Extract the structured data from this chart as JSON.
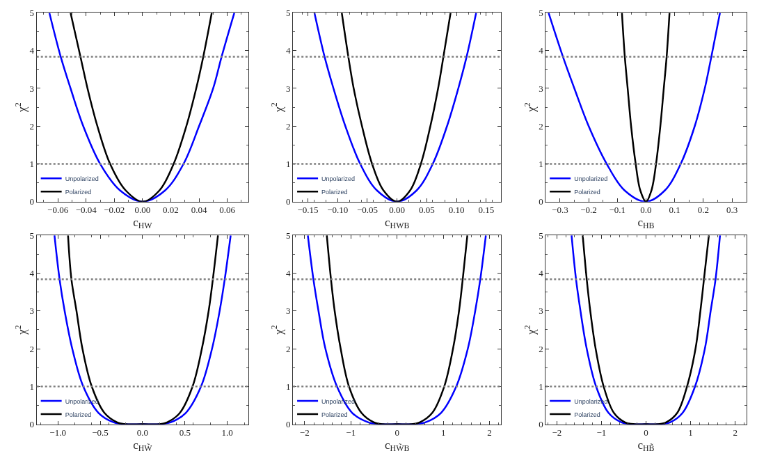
{
  "chart_data": [
    {
      "type": "line",
      "xlabel": "c$_{HW}$",
      "ylabel": "χ$^{2}$",
      "xlim": [
        -0.075,
        0.075
      ],
      "ylim": [
        0,
        5
      ],
      "legend": "bottom left",
      "xticks": [
        {
          "value": -0.06,
          "label": "−0.06"
        },
        {
          "value": -0.04,
          "label": "−0.04"
        },
        {
          "value": -0.02,
          "label": "−0.02"
        },
        {
          "value": 0,
          "label": "0.00"
        },
        {
          "value": 0.02,
          "label": "0.02"
        },
        {
          "value": 0.04,
          "label": "0.04"
        },
        {
          "value": 0.06,
          "label": "0.06"
        }
      ],
      "yticks": [
        0,
        1,
        2,
        3,
        4,
        5
      ],
      "ref_lines": [
        {
          "axis": "y",
          "value": 1,
          "color": "#808080",
          "line_style": "dotted"
        },
        {
          "axis": "y",
          "value": 3.84,
          "color": "#808080",
          "line_style": "dotted"
        }
      ],
      "series": [
        {
          "name": "Unpolarized",
          "color": "#0000ff",
          "x": [
            -0.066,
            -0.058,
            -0.051,
            -0.042,
            -0.03,
            -0.016,
            0,
            0.016,
            0.029,
            0.04,
            0.05,
            0.056,
            0.065
          ],
          "values": [
            5,
            3.84,
            3,
            2,
            1,
            0.3,
            0,
            0.3,
            1,
            2,
            3,
            3.84,
            5
          ]
        },
        {
          "name": "Polarized",
          "color": "#000000",
          "x": [
            -0.051,
            -0.044,
            -0.039,
            -0.032,
            -0.023,
            -0.012,
            0,
            0.012,
            0.022,
            0.031,
            0.038,
            0.043,
            0.049
          ],
          "values": [
            5,
            3.84,
            3,
            2,
            1,
            0.3,
            0,
            0.3,
            1,
            2,
            3,
            3.84,
            5
          ]
        }
      ]
    },
    {
      "type": "line",
      "xlabel": "c$_{HWB}$",
      "ylabel": "χ$^{2}$",
      "xlim": [
        -0.175,
        0.175
      ],
      "ylim": [
        0,
        5
      ],
      "legend": "bottom left",
      "xticks": [
        {
          "value": -0.15,
          "label": "−0.15"
        },
        {
          "value": -0.1,
          "label": "−0.10"
        },
        {
          "value": -0.05,
          "label": "−0.05"
        },
        {
          "value": 0,
          "label": "0.00"
        },
        {
          "value": 0.05,
          "label": "0.05"
        },
        {
          "value": 0.1,
          "label": "0.10"
        },
        {
          "value": 0.15,
          "label": "0.15"
        }
      ],
      "yticks": [
        0,
        1,
        2,
        3,
        4,
        5
      ],
      "ref_lines": [
        {
          "axis": "y",
          "value": 1,
          "color": "#808080",
          "line_style": "dotted"
        },
        {
          "axis": "y",
          "value": 3.84,
          "color": "#808080",
          "line_style": "dotted"
        }
      ],
      "series": [
        {
          "name": "Unpolarized",
          "color": "#0000ff",
          "x": [
            -0.139,
            -0.122,
            -0.107,
            -0.087,
            -0.062,
            -0.034,
            0,
            0.033,
            0.06,
            0.084,
            0.103,
            0.117,
            0.133
          ],
          "values": [
            5,
            3.84,
            3,
            2,
            1,
            0.3,
            0,
            0.3,
            1,
            2,
            3,
            3.84,
            5
          ]
        },
        {
          "name": "Polarized",
          "color": "#000000",
          "x": [
            -0.093,
            -0.082,
            -0.073,
            -0.059,
            -0.042,
            -0.023,
            0,
            0.022,
            0.04,
            0.056,
            0.069,
            0.078,
            0.09
          ],
          "values": [
            5,
            3.84,
            3,
            2,
            1,
            0.3,
            0,
            0.3,
            1,
            2,
            3,
            3.84,
            5
          ]
        }
      ]
    },
    {
      "type": "line",
      "xlabel": "c$_{HB}$",
      "ylabel": "χ$^{2}$",
      "xlim": [
        -0.35,
        0.35
      ],
      "ylim": [
        0,
        5
      ],
      "legend": "bottom left",
      "xticks": [
        {
          "value": -0.3,
          "label": "−0.3"
        },
        {
          "value": -0.2,
          "label": "−0.2"
        },
        {
          "value": -0.1,
          "label": "−0.1"
        },
        {
          "value": 0,
          "label": "0.0"
        },
        {
          "value": 0.1,
          "label": "0.1"
        },
        {
          "value": 0.2,
          "label": "0.2"
        },
        {
          "value": 0.3,
          "label": "0.3"
        }
      ],
      "yticks": [
        0,
        1,
        2,
        3,
        4,
        5
      ],
      "ref_lines": [
        {
          "axis": "y",
          "value": 1,
          "color": "#808080",
          "line_style": "dotted"
        },
        {
          "axis": "y",
          "value": 3.84,
          "color": "#808080",
          "line_style": "dotted"
        }
      ],
      "series": [
        {
          "name": "Unpolarized",
          "color": "#0000ff",
          "x": [
            -0.34,
            -0.29,
            -0.25,
            -0.2,
            -0.137,
            -0.075,
            0,
            0.066,
            0.121,
            0.17,
            0.205,
            0.228,
            0.258
          ],
          "values": [
            5,
            3.84,
            3,
            2,
            1,
            0.3,
            0,
            0.3,
            1,
            2,
            3,
            3.84,
            5
          ]
        },
        {
          "name": "Polarized",
          "color": "#000000",
          "x": [
            -0.084,
            -0.074,
            -0.064,
            -0.052,
            -0.036,
            -0.02,
            0,
            0.019,
            0.035,
            0.05,
            0.062,
            0.072,
            0.082
          ],
          "values": [
            5,
            3.84,
            3,
            2,
            1,
            0.3,
            0,
            0.3,
            1,
            2,
            3,
            3.84,
            5
          ]
        }
      ]
    },
    {
      "type": "line",
      "xlabel": "c$_{HW̃}$",
      "ylabel": "χ$^{2}$",
      "xlim": [
        -1.25,
        1.25
      ],
      "ylim": [
        0,
        5
      ],
      "legend": "bottom left",
      "xticks": [
        {
          "value": -1,
          "label": "−1.0"
        },
        {
          "value": -0.5,
          "label": "−0.5"
        },
        {
          "value": 0,
          "label": "0.0"
        },
        {
          "value": 0.5,
          "label": "0.5"
        },
        {
          "value": 1,
          "label": "1.0"
        }
      ],
      "yticks": [
        0,
        1,
        2,
        3,
        4,
        5
      ],
      "ref_lines": [
        {
          "axis": "y",
          "value": 1,
          "color": "#808080",
          "line_style": "dotted"
        },
        {
          "axis": "y",
          "value": 3.84,
          "color": "#808080",
          "line_style": "dotted"
        }
      ],
      "series": [
        {
          "name": "Unpolarized",
          "color": "#0000ff",
          "x": [
            -1.04,
            -0.98,
            -0.92,
            -0.83,
            -0.7,
            -0.52,
            -0.34,
            -0.2,
            0,
            0.2,
            0.33,
            0.51,
            0.69,
            0.82,
            0.91,
            0.97,
            1.04
          ],
          "values": [
            5,
            3.84,
            3,
            2,
            1,
            0.3,
            0.05,
            0,
            0,
            0,
            0.05,
            0.3,
            1,
            2,
            3,
            3.84,
            5
          ]
        },
        {
          "name": "Polarized",
          "color": "#000000",
          "x": [
            -0.88,
            -0.84,
            -0.78,
            -0.71,
            -0.6,
            -0.45,
            -0.3,
            -0.2,
            0,
            0.2,
            0.29,
            0.44,
            0.59,
            0.7,
            0.78,
            0.83,
            0.89
          ],
          "values": [
            5,
            3.84,
            3,
            2,
            1,
            0.3,
            0.05,
            0,
            0,
            0,
            0.05,
            0.3,
            1,
            2,
            3,
            3.84,
            5
          ]
        }
      ]
    },
    {
      "type": "line",
      "xlabel": "c$_{HW̃B}$",
      "ylabel": "χ$^{2}$",
      "xlim": [
        -2.25,
        2.25
      ],
      "ylim": [
        0,
        5
      ],
      "legend": "bottom left",
      "xticks": [
        {
          "value": -2,
          "label": "−2"
        },
        {
          "value": -1,
          "label": "−1"
        },
        0,
        1,
        2
      ],
      "yticks": [
        0,
        1,
        2,
        3,
        4,
        5
      ],
      "ref_lines": [
        {
          "axis": "y",
          "value": 1,
          "color": "#808080",
          "line_style": "dotted"
        },
        {
          "axis": "y",
          "value": 3.84,
          "color": "#808080",
          "line_style": "dotted"
        }
      ],
      "series": [
        {
          "name": "Unpolarized",
          "color": "#0000ff",
          "x": [
            -1.93,
            -1.81,
            -1.7,
            -1.55,
            -1.3,
            -0.97,
            -0.62,
            -0.35,
            0,
            0.35,
            0.61,
            0.95,
            1.28,
            1.53,
            1.69,
            1.8,
            1.92
          ],
          "values": [
            5,
            3.84,
            3,
            2,
            1,
            0.3,
            0.05,
            0,
            0,
            0,
            0.05,
            0.3,
            1,
            2,
            3,
            3.84,
            5
          ]
        },
        {
          "name": "Polarized",
          "color": "#000000",
          "x": [
            -1.52,
            -1.43,
            -1.35,
            -1.22,
            -1.04,
            -0.77,
            -0.5,
            -0.3,
            0,
            0.3,
            0.49,
            0.76,
            1.02,
            1.21,
            1.34,
            1.42,
            1.52
          ],
          "values": [
            5,
            3.84,
            3,
            2,
            1,
            0.3,
            0.05,
            0,
            0,
            0,
            0.05,
            0.3,
            1,
            2,
            3,
            3.84,
            5
          ]
        }
      ]
    },
    {
      "type": "line",
      "xlabel": "c$_{HB̃}$",
      "ylabel": "χ$^{2}$",
      "xlim": [
        -2.25,
        2.25
      ],
      "ylim": [
        0,
        5
      ],
      "legend": "bottom left",
      "xticks": [
        {
          "value": -2,
          "label": "−2"
        },
        {
          "value": -1,
          "label": "−1"
        },
        0,
        1,
        2
      ],
      "yticks": [
        0,
        1,
        2,
        3,
        4,
        5
      ],
      "ref_lines": [
        {
          "axis": "y",
          "value": 1,
          "color": "#808080",
          "line_style": "dotted"
        },
        {
          "axis": "y",
          "value": 3.84,
          "color": "#808080",
          "line_style": "dotted"
        }
      ],
      "series": [
        {
          "name": "Unpolarized",
          "color": "#0000ff",
          "x": [
            -1.67,
            -1.57,
            -1.47,
            -1.33,
            -1.12,
            -0.84,
            -0.55,
            -0.3,
            0,
            0.3,
            0.54,
            0.82,
            1.1,
            1.32,
            1.45,
            1.56,
            1.66
          ],
          "values": [
            5,
            3.84,
            3,
            2,
            1,
            0.3,
            0.05,
            0,
            0,
            0,
            0.05,
            0.3,
            1,
            2,
            3,
            3.84,
            5
          ]
        },
        {
          "name": "Polarized",
          "color": "#000000",
          "x": [
            -1.42,
            -1.33,
            -1.25,
            -1.13,
            -0.95,
            -0.72,
            -0.47,
            -0.25,
            0,
            0.25,
            0.45,
            0.7,
            0.92,
            1.11,
            1.22,
            1.3,
            1.41
          ],
          "values": [
            5,
            3.84,
            3,
            2,
            1,
            0.3,
            0.05,
            0,
            0,
            0,
            0.05,
            0.3,
            1,
            2,
            3,
            3.84,
            5
          ]
        }
      ]
    }
  ]
}
